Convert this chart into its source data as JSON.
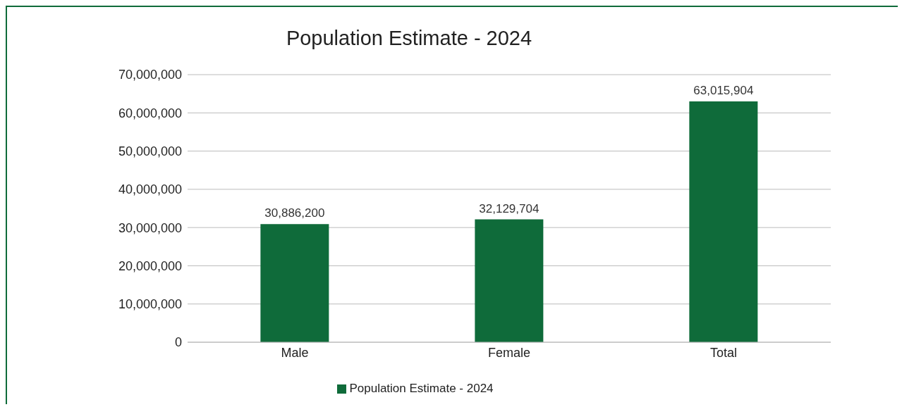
{
  "chart_data": {
    "type": "bar",
    "title": "Population Estimate - 2024",
    "categories": [
      "Male",
      "Female",
      "Total"
    ],
    "series": [
      {
        "name": "Population Estimate - 2024",
        "color": "#0f6b3a",
        "values": [
          30886200,
          32129704,
          63015904
        ],
        "value_labels": [
          "30,886,200",
          "32,129,704",
          "63,015,904"
        ]
      }
    ],
    "ylim": [
      0,
      70000000
    ],
    "yticks": [
      0,
      {
        "value": 10000000,
        "label": "10,000,000"
      },
      {
        "value": 20000000,
        "label": "20,000,000"
      },
      {
        "value": 30000000,
        "label": "30,000,000"
      },
      {
        "value": 40000000,
        "label": "40,000,000"
      },
      {
        "value": 50000000,
        "label": "50,000,000"
      },
      {
        "value": 60000000,
        "label": "60,000,000"
      },
      {
        "value": 70000000,
        "label": "70,000,000"
      }
    ],
    "grid": "y",
    "legend": "bottom"
  }
}
